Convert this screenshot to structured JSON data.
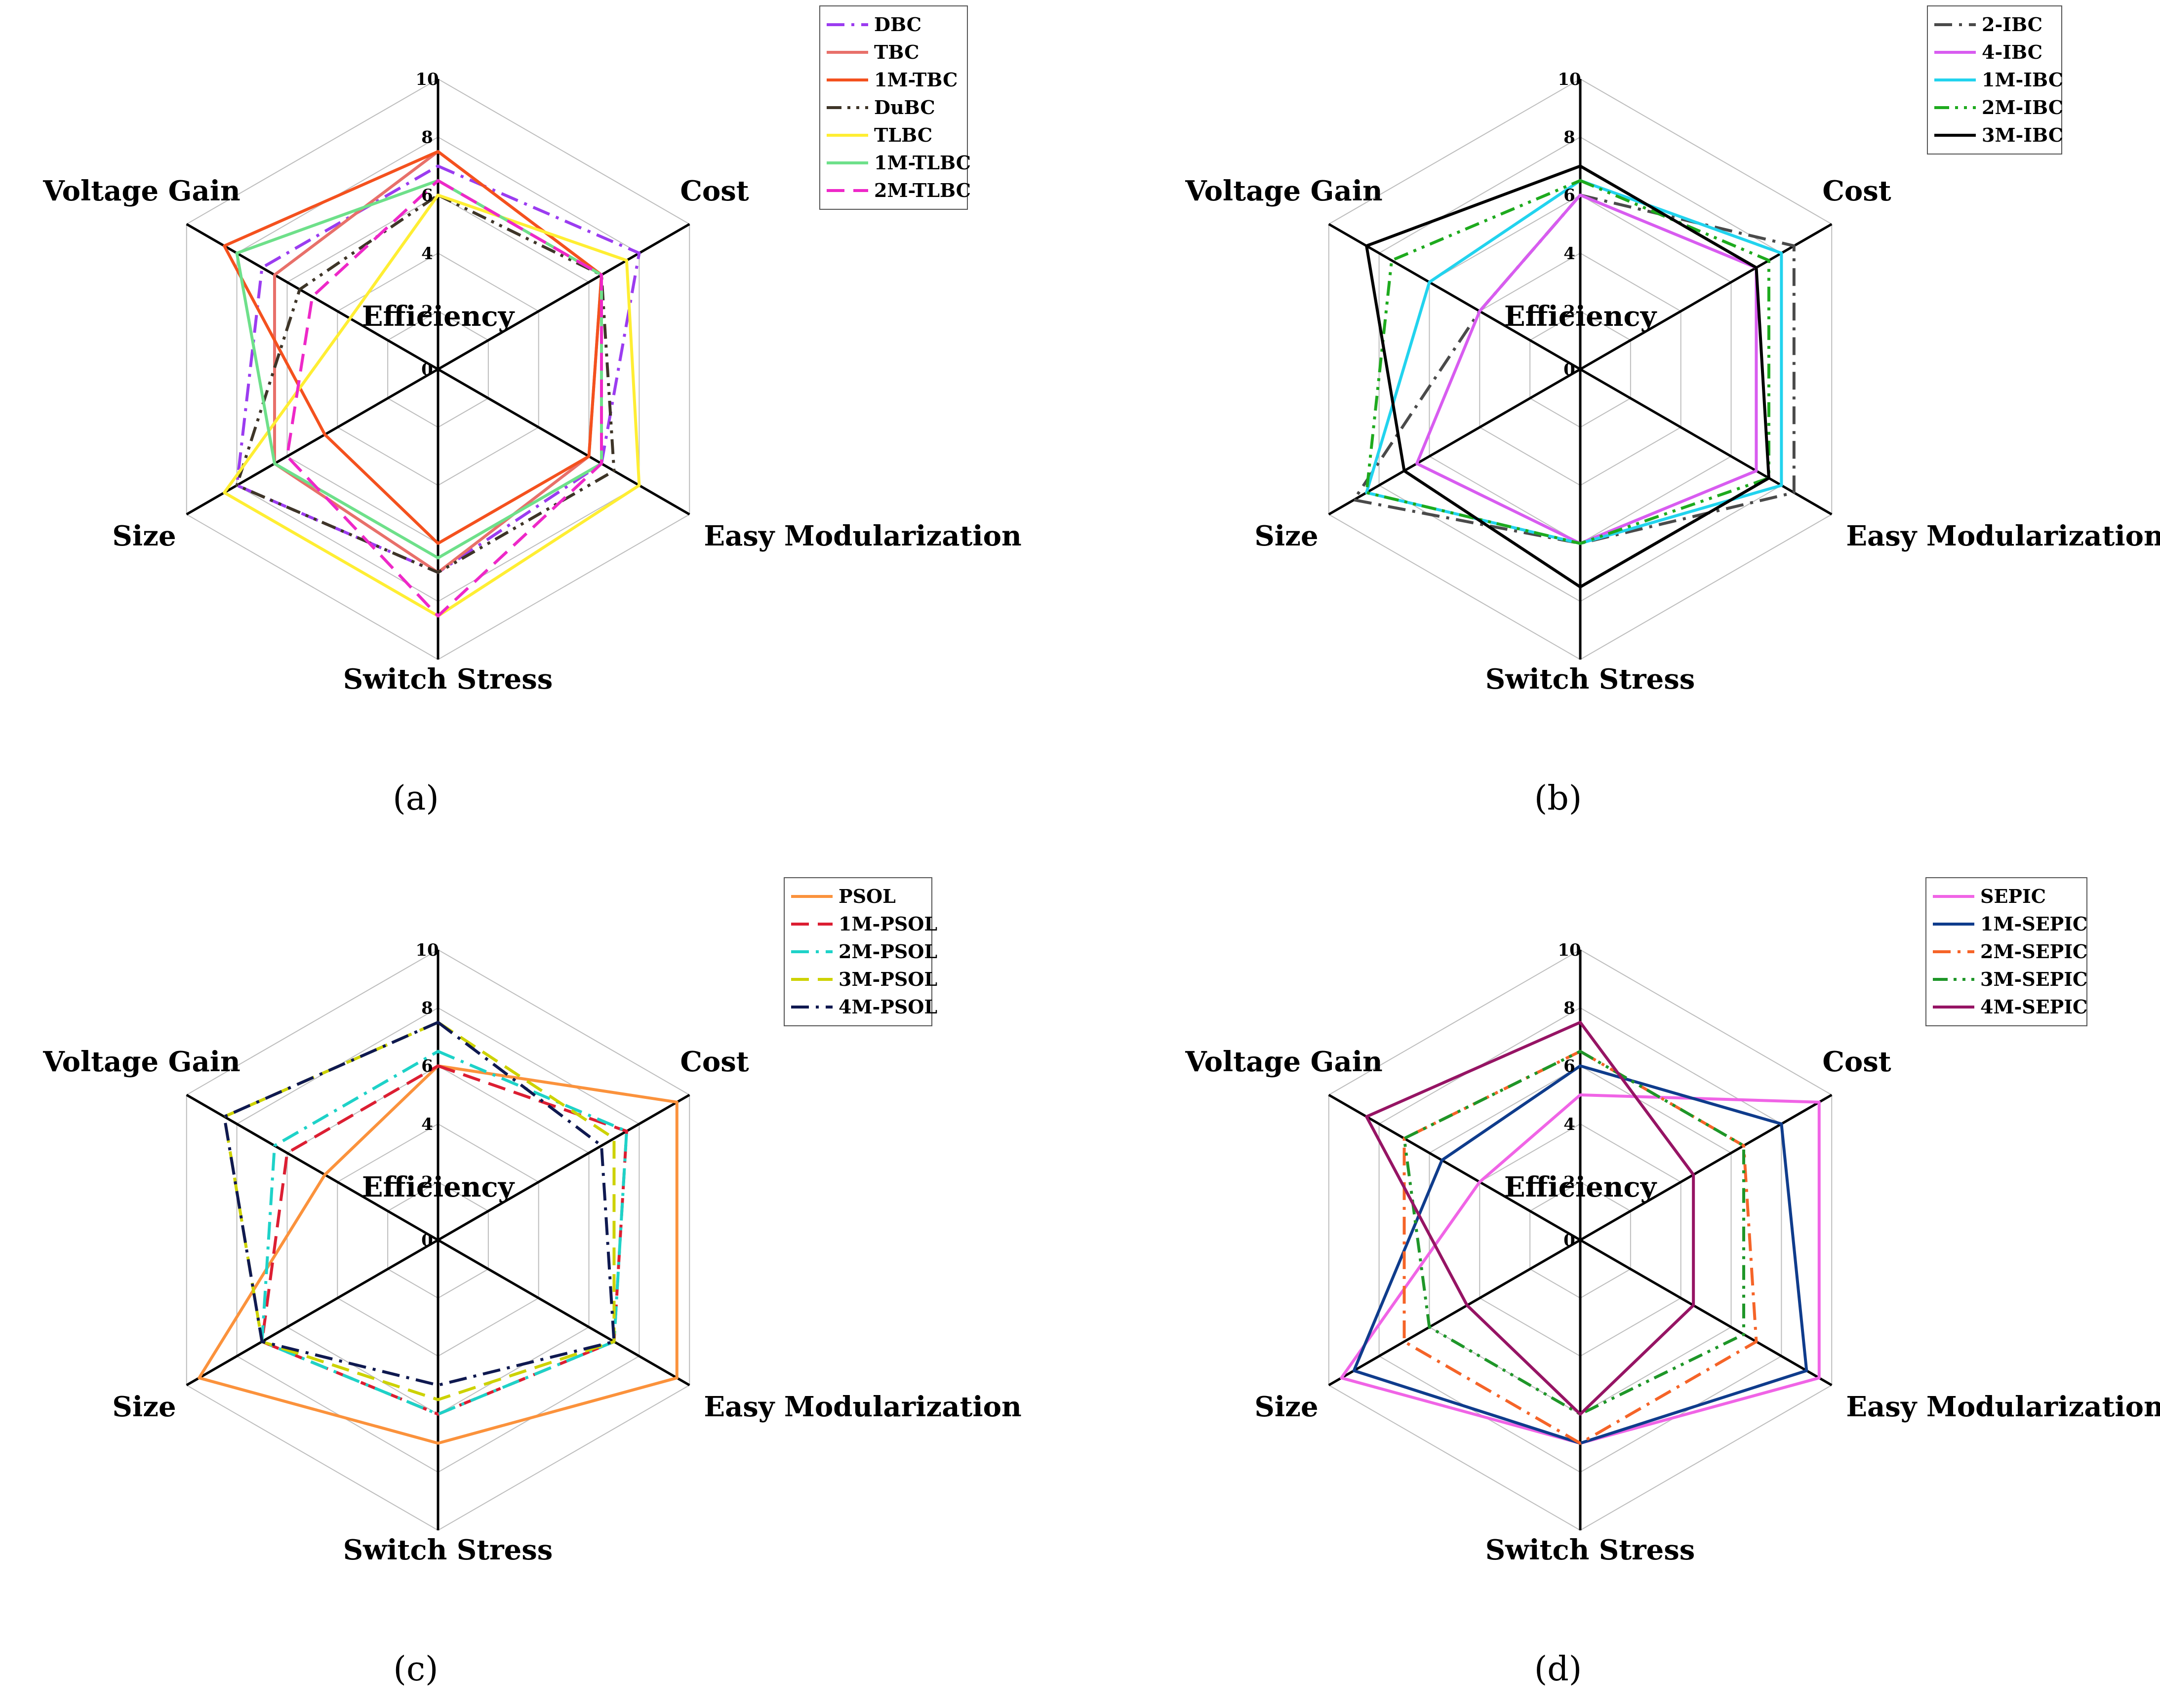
{
  "axes": [
    "Efficiency",
    "Cost",
    "Easy Modularization",
    "Switch  Stress",
    "Size",
    "Voltage Gain"
  ],
  "ticks": [
    "0",
    "2",
    "4",
    "6",
    "8",
    "10"
  ],
  "chart_data": [
    {
      "type": "radar",
      "panel_label": "(a)",
      "rlim": [
        0,
        10
      ],
      "grid": true,
      "legend_position": "top-right",
      "series": [
        {
          "name": "DBC",
          "color": "#9b3cf0",
          "dash": "dashdot",
          "values": [
            7.0,
            8.0,
            6.5,
            7.0,
            8.0,
            7.0
          ]
        },
        {
          "name": "TBC",
          "color": "#e8706a",
          "dash": "solid",
          "values": [
            7.5,
            6.5,
            6.0,
            7.0,
            6.5,
            6.5
          ]
        },
        {
          "name": "1M-TBC",
          "color": "#f4511e",
          "dash": "solid",
          "values": [
            7.5,
            6.5,
            6.0,
            6.0,
            4.5,
            8.5
          ]
        },
        {
          "name": "DuBC",
          "color": "#3e3528",
          "dash": "dashdotdot",
          "values": [
            6.0,
            6.5,
            7.0,
            7.0,
            8.0,
            5.5
          ]
        },
        {
          "name": "TLBC",
          "color": "#ffee33",
          "dash": "solid",
          "values": [
            6.0,
            7.5,
            8.0,
            8.5,
            8.5,
            3.5
          ]
        },
        {
          "name": "1M-TLBC",
          "color": "#6ee08a",
          "dash": "solid",
          "values": [
            6.5,
            6.5,
            6.5,
            6.5,
            6.5,
            8.0
          ]
        },
        {
          "name": "2M-TLBC",
          "color": "#ee28c8",
          "dash": "dashed",
          "values": [
            6.5,
            6.5,
            6.5,
            8.5,
            6.0,
            5.0
          ]
        }
      ]
    },
    {
      "type": "radar",
      "panel_label": "(b)",
      "rlim": [
        0,
        10
      ],
      "grid": true,
      "legend_position": "top-right",
      "series": [
        {
          "name": "2-IBC",
          "color": "#4a4a4a",
          "dash": "dashdot",
          "values": [
            6.0,
            8.5,
            8.5,
            6.0,
            9.0,
            4.0
          ]
        },
        {
          "name": "4-IBC",
          "color": "#d85cf0",
          "dash": "solid",
          "values": [
            6.0,
            7.0,
            7.0,
            6.0,
            6.5,
            4.0
          ]
        },
        {
          "name": "1M-IBC",
          "color": "#22d3ee",
          "dash": "solid",
          "values": [
            6.5,
            8.0,
            8.0,
            6.0,
            8.5,
            6.0
          ]
        },
        {
          "name": "2M-IBC",
          "color": "#1eaa1e",
          "dash": "dashdotdot",
          "values": [
            6.5,
            7.5,
            7.5,
            6.0,
            8.5,
            7.5
          ]
        },
        {
          "name": "3M-IBC",
          "color": "#000000",
          "dash": "solid",
          "values": [
            7.0,
            7.0,
            7.5,
            7.5,
            7.0,
            8.5
          ]
        }
      ]
    },
    {
      "type": "radar",
      "panel_label": "(c)",
      "rlim": [
        0,
        10
      ],
      "grid": true,
      "legend_position": "top-right",
      "series": [
        {
          "name": "PSOL",
          "color": "#fb923c",
          "dash": "solid",
          "values": [
            6.0,
            9.5,
            9.5,
            7.0,
            9.5,
            4.5
          ]
        },
        {
          "name": "1M-PSOL",
          "color": "#dc1e32",
          "dash": "dashed",
          "values": [
            6.0,
            7.5,
            7.0,
            6.0,
            7.0,
            6.0
          ]
        },
        {
          "name": "2M-PSOL",
          "color": "#1ed2c8",
          "dash": "dashdot",
          "values": [
            6.5,
            7.5,
            7.0,
            6.0,
            7.0,
            6.5
          ]
        },
        {
          "name": "3M-PSOL",
          "color": "#cdd200",
          "dash": "dashed",
          "values": [
            7.5,
            7.0,
            7.0,
            5.5,
            7.0,
            8.5
          ]
        },
        {
          "name": "4M-PSOL",
          "color": "#0f1950",
          "dash": "dashdot",
          "values": [
            7.5,
            6.5,
            7.0,
            5.0,
            7.0,
            8.5
          ]
        }
      ]
    },
    {
      "type": "radar",
      "panel_label": "(d)",
      "rlim": [
        0,
        10
      ],
      "grid": true,
      "legend_position": "top-right",
      "series": [
        {
          "name": "SEPIC",
          "color": "#f064e6",
          "dash": "solid",
          "values": [
            5.0,
            9.5,
            9.5,
            7.0,
            9.5,
            4.0
          ]
        },
        {
          "name": "1M-SEPIC",
          "color": "#0f3c8c",
          "dash": "solid",
          "values": [
            6.0,
            8.0,
            9.0,
            7.0,
            9.0,
            5.5
          ]
        },
        {
          "name": "2M-SEPIC",
          "color": "#f56428",
          "dash": "dashdot",
          "values": [
            6.5,
            6.5,
            7.0,
            7.0,
            7.0,
            7.0
          ]
        },
        {
          "name": "3M-SEPIC",
          "color": "#1e9628",
          "dash": "dashdotdot",
          "values": [
            6.5,
            6.5,
            6.5,
            6.0,
            6.0,
            7.0
          ]
        },
        {
          "name": "4M-SEPIC",
          "color": "#961464",
          "dash": "solid",
          "values": [
            7.5,
            4.5,
            4.5,
            6.0,
            4.5,
            8.5
          ]
        }
      ]
    }
  ]
}
